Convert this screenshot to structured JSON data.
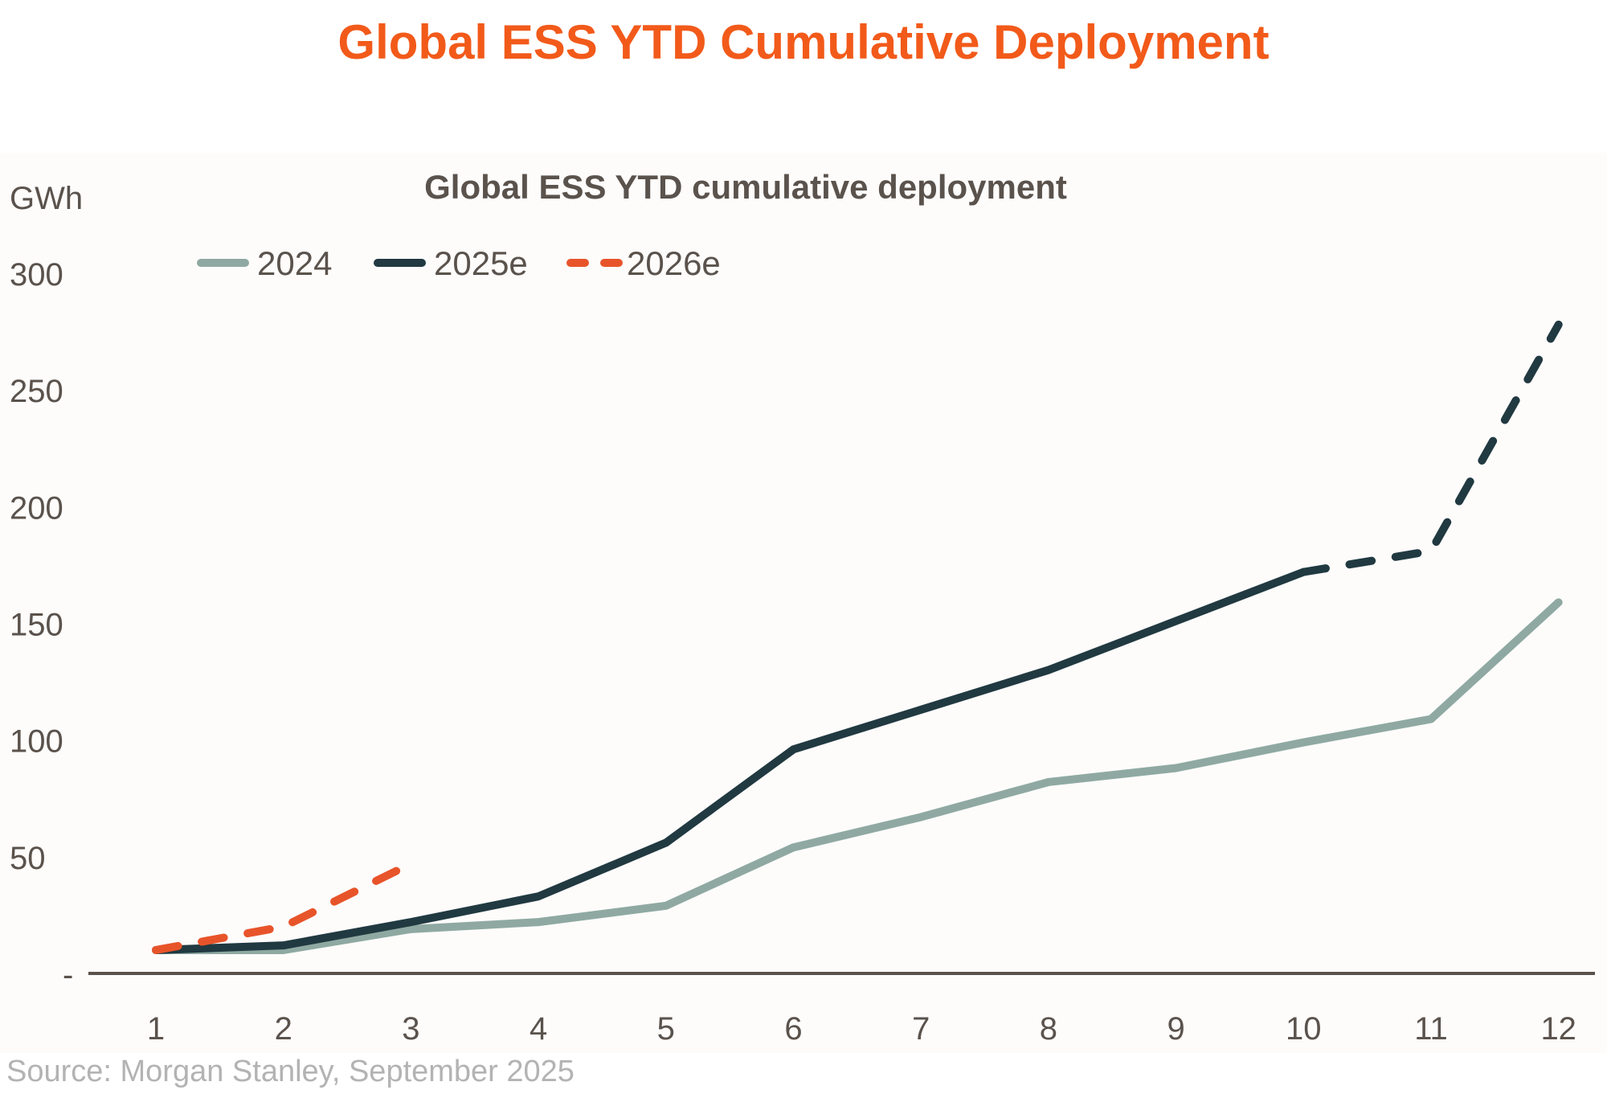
{
  "title": "Global ESS YTD Cumulative Deployment",
  "source": "Source: Morgan Stanley, September 2025",
  "chart_data": {
    "type": "line",
    "title": "Global ESS YTD cumulative deployment",
    "ylabel": "GWh",
    "xlabel": "",
    "x": [
      1,
      2,
      3,
      4,
      5,
      6,
      7,
      8,
      9,
      10,
      11,
      12
    ],
    "ylim": [
      0,
      300
    ],
    "yticks": [
      0,
      50,
      100,
      150,
      200,
      250,
      300
    ],
    "ytick_labels": [
      "-",
      "50",
      "100",
      "150",
      "200",
      "250",
      "300"
    ],
    "grid": false,
    "legend_position": "top-left",
    "series": [
      {
        "name": "2024",
        "color": "#8fa9a2",
        "style": "solid",
        "values": [
          10,
          10,
          19,
          22,
          29,
          54,
          67,
          82,
          88,
          99,
          109,
          159
        ]
      },
      {
        "name": "2025e",
        "color": "#213941",
        "style": "solid-then-dashed",
        "dashed_from_month": 10,
        "values": [
          10,
          12,
          22,
          33,
          56,
          96,
          113,
          130,
          151,
          172,
          181,
          278
        ]
      },
      {
        "name": "2026e",
        "color": "#e8542a",
        "style": "dashed",
        "values": [
          10,
          20,
          47
        ]
      }
    ]
  }
}
